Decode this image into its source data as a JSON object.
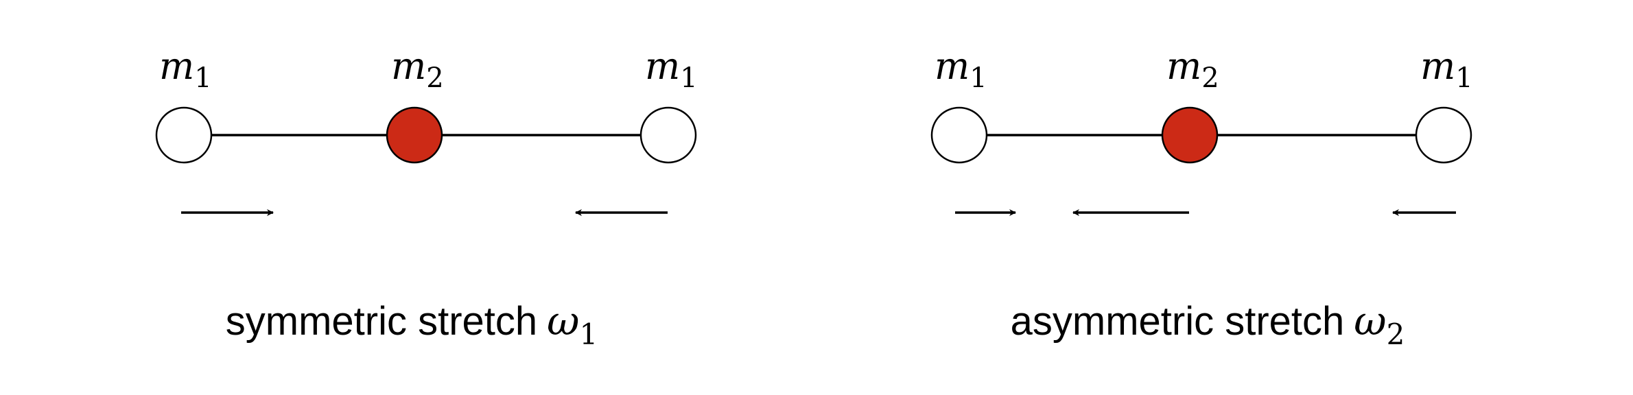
{
  "colors": {
    "heavy_atom": "#cc2a16",
    "light_atom": "#ffffff",
    "stroke": "#000000"
  },
  "modes": [
    {
      "id": "symmetric",
      "caption_text": "symmetric stretch",
      "caption_symbol": "ω",
      "caption_subscript": "1",
      "atoms": [
        {
          "label": "m",
          "sub": "1"
        },
        {
          "label": "m",
          "sub": "2"
        },
        {
          "label": "m",
          "sub": "1"
        }
      ]
    },
    {
      "id": "asymmetric",
      "caption_text": "asymmetric stretch",
      "caption_symbol": "ω",
      "caption_subscript": "2",
      "atoms": [
        {
          "label": "m",
          "sub": "1"
        },
        {
          "label": "m",
          "sub": "2"
        },
        {
          "label": "m",
          "sub": "1"
        }
      ]
    }
  ]
}
